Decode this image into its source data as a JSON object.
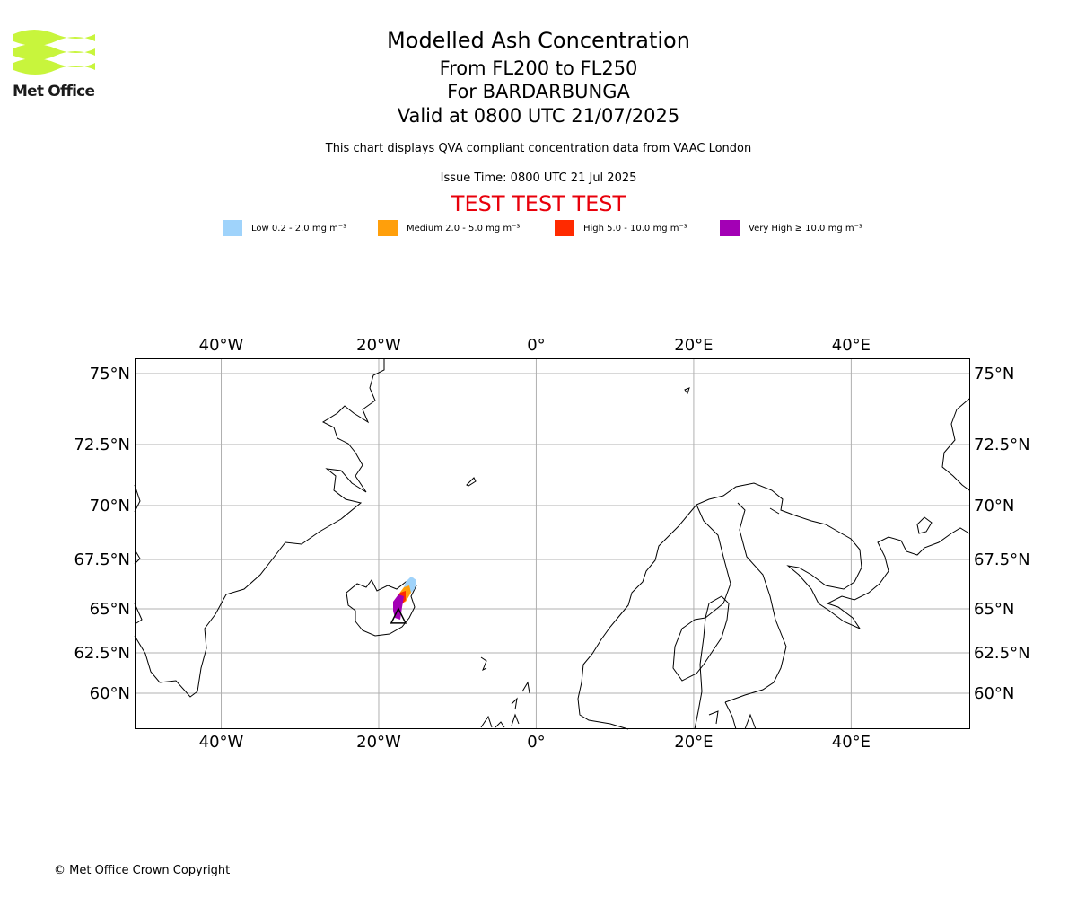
{
  "header": {
    "title": "Modelled Ash Concentration",
    "subtitle_levels": "From FL200 to FL250",
    "subtitle_volcano": "For BARDARBUNGA",
    "subtitle_valid": "Valid at 0800 UTC 21/07/2025",
    "description": "This chart displays QVA compliant concentration data from VAAC London",
    "issue_time": "Issue Time: 0800 UTC 21 Jul 2025",
    "test_banner": "TEST TEST TEST"
  },
  "logo": {
    "text": "Met Office",
    "color": "#c8f53c"
  },
  "legend": [
    {
      "label": "Low 0.2 - 2.0 mg m⁻³",
      "color": "#9fd3fb"
    },
    {
      "label": "Medium 2.0 - 5.0 mg m⁻³",
      "color": "#ff9f0b"
    },
    {
      "label": "High 5.0 - 10.0 mg m⁻³",
      "color": "#ff2a00"
    },
    {
      "label": "Very High ≥ 10.0 mg m⁻³",
      "color": "#a300b5"
    }
  ],
  "map": {
    "lon_range": [
      -51,
      55
    ],
    "lat_range": [
      58,
      76
    ],
    "lon_ticks": [
      {
        "value": -40,
        "label": "40°W"
      },
      {
        "value": -20,
        "label": "20°W"
      },
      {
        "value": 0,
        "label": "0°"
      },
      {
        "value": 20,
        "label": "20°E"
      },
      {
        "value": 40,
        "label": "40°E"
      }
    ],
    "lat_ticks": [
      {
        "value": 75,
        "label": "75°N"
      },
      {
        "value": 72.5,
        "label": "72.5°N"
      },
      {
        "value": 70,
        "label": "70°N"
      },
      {
        "value": 67.5,
        "label": "67.5°N"
      },
      {
        "value": 65,
        "label": "65°N"
      },
      {
        "value": 62.5,
        "label": "62.5°N"
      },
      {
        "value": 60,
        "label": "60°N"
      }
    ],
    "gridlines": true,
    "volcano_marker": {
      "name": "BARDARBUNGA",
      "symbol": "triangle",
      "lon": -17.5,
      "lat": 64.6
    }
  },
  "footer": {
    "copyright": "© Met Office Crown Copyright"
  }
}
